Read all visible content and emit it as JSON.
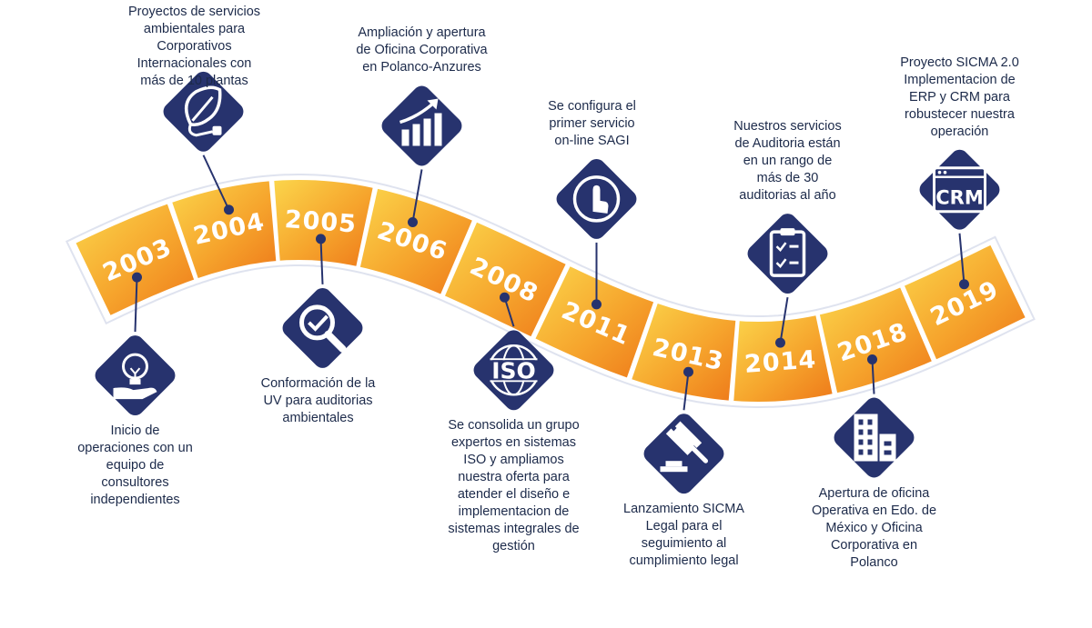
{
  "milestones": [
    {
      "year": "2003",
      "icon": "lightbulb-hand-icon",
      "caption": "Inicio de\noperaciones con un\nequipo de\nconsultores\nindependientes"
    },
    {
      "year": "2004",
      "icon": "leaf-plug-icon",
      "caption": "Proyectos de servicios\nambientales para\nCorporativos\nInternacionales con\nmás de 10 plantas"
    },
    {
      "year": "2005",
      "icon": "magnifier-check-icon",
      "caption": "Conformación de la\nUV para auditorias\nambientales"
    },
    {
      "year": "2006",
      "icon": "growth-chart-icon",
      "caption": "Ampliación y apertura\nde Oficina Corporativa\nen Polanco-Anzures"
    },
    {
      "year": "2008",
      "icon": "iso-globe-icon",
      "caption": "Se consolida un grupo\nexpertos en sistemas\nISO y ampliamos\nnuestra oferta para\natender el diseño e\nimplementacion de\nsistemas integrales de\ngestión"
    },
    {
      "year": "2011",
      "icon": "touch-finger-icon",
      "caption": "Se configura el\nprimer servicio\non-line SAGI"
    },
    {
      "year": "2013",
      "icon": "gavel-icon",
      "caption": "Lanzamiento SICMA\nLegal para el\nseguimiento al\ncumplimiento legal"
    },
    {
      "year": "2014",
      "icon": "checklist-clipboard-icon",
      "caption": "Nuestros servicios\nde Auditoria están\nen un rango de\nmás de 30\nauditorias al año"
    },
    {
      "year": "2018",
      "icon": "office-buildings-icon",
      "caption": "Apertura de oficina\nOperativa en Edo. de\nMéxico y Oficina\nCorporativa en\nPolanco"
    },
    {
      "year": "2019",
      "icon": "crm-window-icon",
      "caption": "Proyecto SICMA 2.0\nImplementacion de\nERP y CRM para\nrobustecer nuestra\noperación"
    }
  ],
  "iso_text": "ISO",
  "crm_text": "CRM",
  "colors": {
    "navy": "#27336e",
    "orange_light": "#fbd14a",
    "orange_dark": "#ee7d1b",
    "border": "#dfe3ef"
  }
}
